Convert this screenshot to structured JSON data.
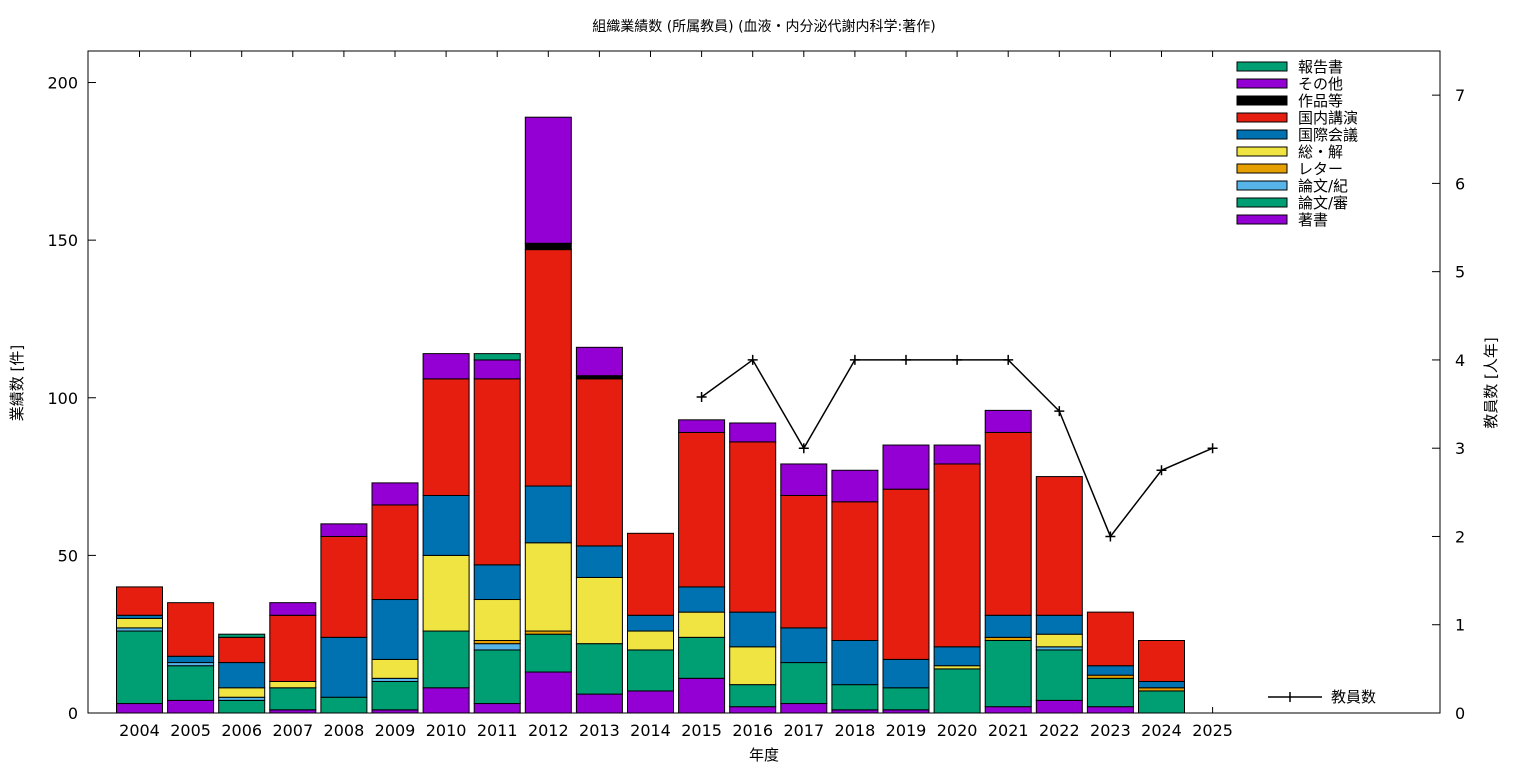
{
  "chart_data": {
    "type": "bar",
    "stacked": true,
    "title": "組織業績数 (所属教員) (血液・内分泌代謝内科学:著作)",
    "xlabel": "年度",
    "ylabel": "業績数 [件]",
    "y2label": "教員数 [人年]",
    "ylim": [
      0,
      210
    ],
    "y2lim": [
      0,
      7.5
    ],
    "yticks": [
      0,
      50,
      100,
      150,
      200
    ],
    "y2ticks": [
      0,
      1,
      2,
      3,
      4,
      5,
      6,
      7
    ],
    "categories": [
      "2004",
      "2005",
      "2006",
      "2007",
      "2008",
      "2009",
      "2010",
      "2011",
      "2012",
      "2013",
      "2014",
      "2015",
      "2016",
      "2017",
      "2018",
      "2019",
      "2020",
      "2021",
      "2022",
      "2023",
      "2024",
      "2025"
    ],
    "legend_position": "top-right",
    "series": [
      {
        "name": "著書",
        "color": "#9400d3",
        "values": [
          3,
          4,
          0,
          1,
          0,
          1,
          8,
          3,
          13,
          6,
          7,
          11,
          2,
          3,
          1,
          1,
          0,
          2,
          4,
          2,
          0,
          0
        ]
      },
      {
        "name": "論文/審",
        "color": "#009e73",
        "values": [
          23,
          11,
          4,
          7,
          5,
          9,
          18,
          17,
          12,
          16,
          13,
          13,
          7,
          13,
          8,
          7,
          14,
          21,
          16,
          9,
          7,
          0
        ]
      },
      {
        "name": "論文/紀",
        "color": "#56b4e9",
        "values": [
          1,
          1,
          1,
          0,
          0,
          1,
          0,
          2,
          0,
          0,
          0,
          0,
          0,
          0,
          0,
          0,
          0,
          0,
          1,
          0,
          0,
          0
        ]
      },
      {
        "name": "レター",
        "color": "#e69f00",
        "values": [
          0,
          0,
          0,
          0,
          0,
          0,
          0,
          1,
          1,
          0,
          0,
          0,
          0,
          0,
          0,
          0,
          0,
          1,
          0,
          1,
          1,
          0
        ]
      },
      {
        "name": "総・解",
        "color": "#f0e442",
        "values": [
          3,
          0,
          3,
          2,
          0,
          6,
          24,
          13,
          28,
          21,
          6,
          8,
          12,
          0,
          0,
          0,
          1,
          0,
          4,
          0,
          0,
          0
        ]
      },
      {
        "name": "国際会議",
        "color": "#0072b2",
        "values": [
          1,
          2,
          8,
          0,
          19,
          19,
          19,
          11,
          18,
          10,
          5,
          8,
          11,
          11,
          14,
          9,
          6,
          7,
          6,
          3,
          2,
          0
        ]
      },
      {
        "name": "国内講演",
        "color": "#e51e10",
        "values": [
          9,
          17,
          8,
          21,
          32,
          30,
          37,
          59,
          75,
          53,
          26,
          49,
          54,
          42,
          44,
          54,
          58,
          58,
          44,
          17,
          13,
          0
        ]
      },
      {
        "name": "作品等",
        "color": "#000000",
        "values": [
          0,
          0,
          0,
          0,
          0,
          0,
          0,
          0,
          2,
          1,
          0,
          0,
          0,
          0,
          0,
          0,
          0,
          0,
          0,
          0,
          0,
          0
        ]
      },
      {
        "name": "その他",
        "color": "#9400d3",
        "values": [
          0,
          0,
          0,
          4,
          4,
          7,
          8,
          6,
          40,
          9,
          0,
          4,
          6,
          10,
          10,
          14,
          6,
          7,
          0,
          0,
          0,
          0
        ]
      },
      {
        "name": "報告書",
        "color": "#009e73",
        "values": [
          0,
          0,
          1,
          0,
          0,
          0,
          0,
          2,
          0,
          0,
          0,
          0,
          0,
          0,
          0,
          0,
          0,
          0,
          0,
          0,
          0,
          0
        ]
      }
    ],
    "line_series": {
      "name": "教員数",
      "color": "#000000",
      "axis": "y2",
      "points": [
        {
          "x": "2015",
          "y": 3.58
        },
        {
          "x": "2016",
          "y": 4.0
        },
        {
          "x": "2017",
          "y": 3.0
        },
        {
          "x": "2018",
          "y": 4.0
        },
        {
          "x": "2019",
          "y": 4.0
        },
        {
          "x": "2020",
          "y": 4.0
        },
        {
          "x": "2021",
          "y": 4.0
        },
        {
          "x": "2022",
          "y": 3.42
        },
        {
          "x": "2023",
          "y": 2.0
        },
        {
          "x": "2024",
          "y": 2.75
        },
        {
          "x": "2025",
          "y": 3.0
        }
      ]
    }
  }
}
